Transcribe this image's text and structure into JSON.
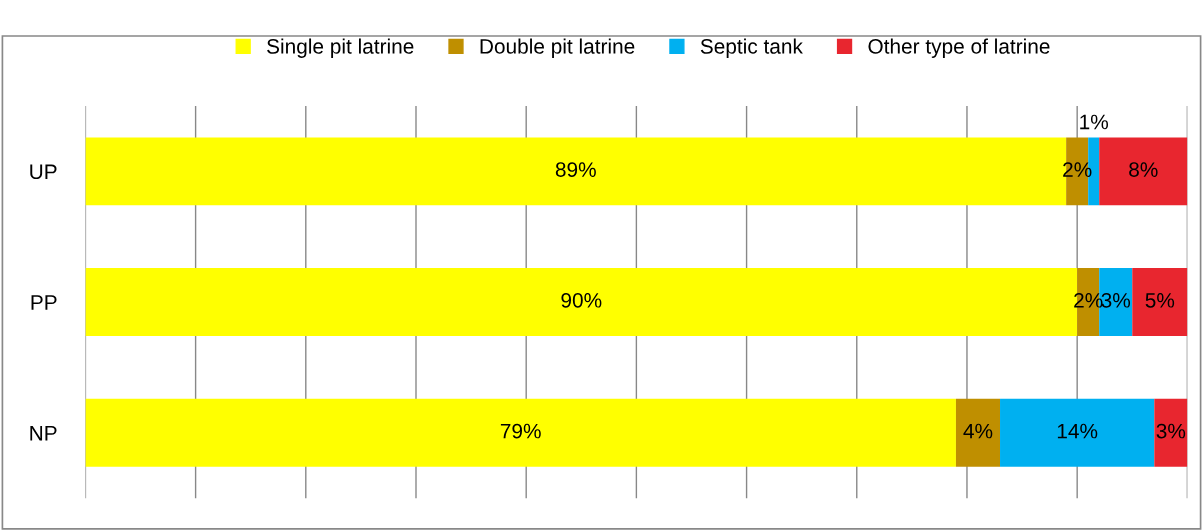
{
  "chart_data": {
    "type": "bar",
    "orientation": "horizontal",
    "stacked": true,
    "categories": [
      "UP",
      "PP",
      "NP"
    ],
    "series": [
      {
        "name": "Single pit latrine",
        "color": "#ffff00",
        "values": [
          89,
          90,
          79
        ],
        "value_labels": [
          "89%",
          "90%",
          "79%"
        ]
      },
      {
        "name": "Double pit latrine",
        "color": "#bf8f00",
        "values": [
          2,
          2,
          4
        ],
        "value_labels": [
          "2%",
          "2%",
          "4%"
        ]
      },
      {
        "name": "Septic tank",
        "color": "#00b0f0",
        "values": [
          1,
          3,
          14
        ],
        "value_labels": [
          "1%",
          "3%",
          "14%"
        ]
      },
      {
        "name": "Other type of latrine",
        "color": "#e8262f",
        "values": [
          8,
          5,
          3
        ],
        "value_labels": [
          "8%",
          "5%",
          "3%"
        ]
      }
    ],
    "xlim": [
      0,
      100
    ],
    "xticks": [
      {
        "value": 0,
        "label": null
      },
      {
        "value": 10,
        "label": null
      },
      {
        "value": 20,
        "label": null
      },
      {
        "value": 30,
        "label": null
      },
      {
        "value": 40,
        "label": null
      },
      {
        "value": 50,
        "label": null
      },
      {
        "value": 60,
        "label": null
      },
      {
        "value": 70,
        "label": null
      },
      {
        "value": 80,
        "label": null
      },
      {
        "value": 90,
        "label": null
      },
      {
        "value": 100,
        "label": null
      }
    ],
    "grid": "x",
    "legend": "top",
    "marker": "square",
    "tick_labels": "y"
  }
}
